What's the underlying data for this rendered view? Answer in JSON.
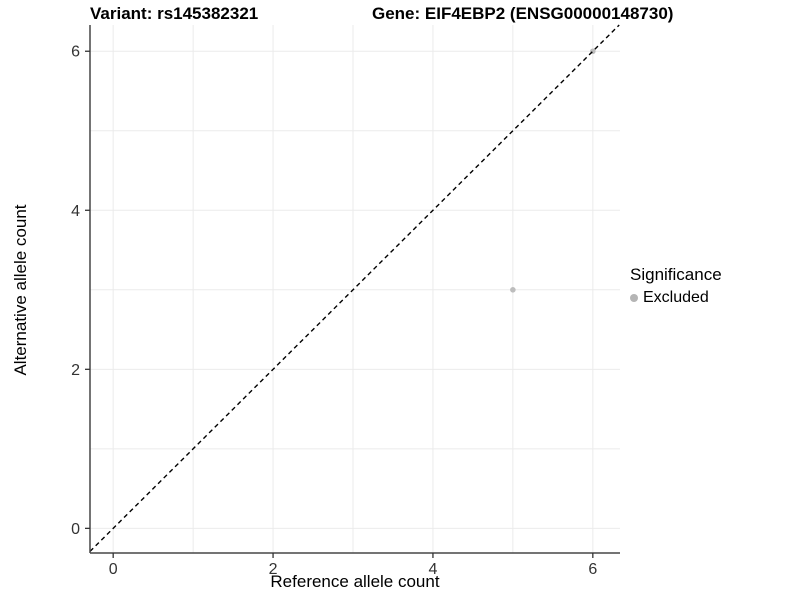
{
  "titles": {
    "left": "Variant: rs145382321",
    "right": "Gene: EIF4EBP2 (ENSG00000148730)"
  },
  "chart_data": {
    "type": "scatter",
    "title": "Variant: rs145382321 — Gene: EIF4EBP2 (ENSG00000148730)",
    "xlabel": "Reference allele count",
    "ylabel": "Alternative allele count",
    "xlim": [
      -0.29,
      6.34
    ],
    "ylim": [
      -0.31,
      6.33
    ],
    "xticks": [
      0,
      2,
      4,
      6
    ],
    "yticks": [
      0,
      2,
      4,
      6
    ],
    "gridlines_x": [
      0,
      1,
      2,
      3,
      4,
      5,
      6
    ],
    "gridlines_y": [
      0,
      1,
      2,
      3,
      4,
      5,
      6
    ],
    "grid_on": true,
    "identity_line": {
      "slope": 1,
      "intercept": 0,
      "style": "dashed",
      "color": "#000000"
    },
    "series": [
      {
        "name": "Excluded",
        "points": [
          {
            "x": 5,
            "y": 3
          },
          {
            "x": 6,
            "y": 6
          }
        ],
        "color": "#bdbdbd"
      }
    ],
    "legend": {
      "title": "Significance",
      "position": "right",
      "items": [
        {
          "label": "Excluded",
          "color": "#b5b5b5"
        }
      ]
    },
    "colors": {
      "grid": "#ebebeb",
      "axis_line": "#464646",
      "tick_mark": "#333333",
      "tick_label": "#333333",
      "background": "#ffffff"
    }
  }
}
